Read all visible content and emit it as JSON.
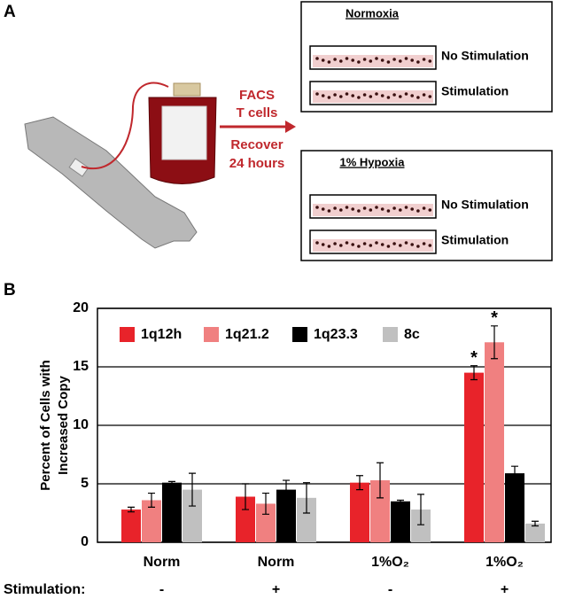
{
  "panel_a": {
    "label": "A",
    "arrow_text": [
      "FACS",
      "T cells"
    ],
    "arrow_subtext": [
      "Recover",
      "24 hours"
    ],
    "conditions": [
      {
        "title": "Normoxia",
        "dishes": [
          "No Stimulation",
          "Stimulation"
        ]
      },
      {
        "title": "1% Hypoxia",
        "dishes": [
          "No Stimulation",
          "Stimulation"
        ]
      }
    ]
  },
  "chart_data": {
    "type": "bar",
    "panel_label": "B",
    "ylabel": [
      "Percent of Cells with",
      "Increased Copy"
    ],
    "categories": [
      "Norm",
      "Norm",
      "1%O₂",
      "1%O₂"
    ],
    "row_label": "Stimulation:",
    "row_values": [
      "-",
      "+",
      "-",
      "+"
    ],
    "ylim": [
      0,
      20
    ],
    "yticks": [
      0,
      5,
      10,
      15,
      20
    ],
    "grid": true,
    "legend": "top-left",
    "series": [
      {
        "name": "1q12h",
        "color": "#e8232a",
        "values": [
          2.8,
          3.9,
          5.1,
          14.5
        ],
        "errors": [
          0.2,
          1.1,
          0.6,
          0.6
        ],
        "markers": [
          null,
          null,
          null,
          "*"
        ]
      },
      {
        "name": "1q21.2",
        "color": "#f08080",
        "values": [
          3.6,
          3.3,
          5.3,
          17.1
        ],
        "errors": [
          0.6,
          0.9,
          1.5,
          1.4
        ],
        "markers": [
          null,
          null,
          null,
          "*"
        ]
      },
      {
        "name": "1q23.3",
        "color": "#000000",
        "values": [
          5.1,
          4.5,
          3.5,
          5.9
        ],
        "errors": [
          0.1,
          0.8,
          0.1,
          0.6
        ],
        "markers": [
          null,
          null,
          null,
          null
        ]
      },
      {
        "name": "8c",
        "color": "#c0c0c0",
        "values": [
          4.5,
          3.8,
          2.8,
          1.6
        ],
        "errors": [
          1.4,
          1.3,
          1.3,
          0.2
        ],
        "markers": [
          null,
          null,
          null,
          null
        ]
      }
    ]
  }
}
